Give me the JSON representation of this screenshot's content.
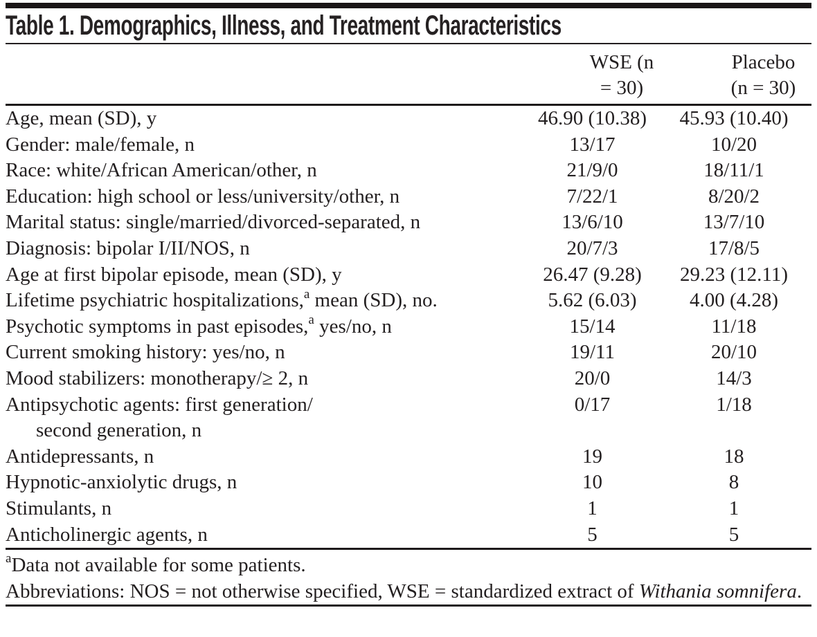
{
  "table": {
    "title": "Table 1. Demographics, Illness, and Treatment Characteristics",
    "columns": {
      "wse": "WSE (n = 30)",
      "placebo_line1": "Placebo",
      "placebo_line2": "(n = 30)"
    },
    "rows": [
      {
        "label": "Age, mean (SD), y",
        "wse": "46.90 (10.38)",
        "placebo": "45.93 (10.40)"
      },
      {
        "label": "Gender: male/female, n",
        "wse": "13/17",
        "placebo": "10/20"
      },
      {
        "label": "Race: white/African American/other, n",
        "wse": "21/9/0",
        "placebo": "18/11/1"
      },
      {
        "label": "Education: high school or less/university/other, n",
        "wse": "7/22/1",
        "placebo": "8/20/2"
      },
      {
        "label": "Marital status: single/married/divorced-separated, n",
        "wse": "13/6/10",
        "placebo": "13/7/10"
      },
      {
        "label": "Diagnosis: bipolar I/II/NOS, n",
        "wse": "20/7/3",
        "placebo": "17/8/5"
      },
      {
        "label": "Age at first bipolar episode, mean (SD), y",
        "wse": "26.47 (9.28)",
        "placebo": "29.23 (12.11)"
      },
      {
        "label": "Lifetime psychiatric hospitalizations,",
        "sup": "a",
        "label_after": " mean (SD), no.",
        "wse": "5.62 (6.03)",
        "placebo": "4.00 (4.28)"
      },
      {
        "label": "Psychotic symptoms in past episodes,",
        "sup": "a",
        "label_after": " yes/no, n",
        "wse": "15/14",
        "placebo": "11/18"
      },
      {
        "label": "Current smoking history: yes/no, n",
        "wse": "19/11",
        "placebo": "20/10"
      },
      {
        "label": "Mood stabilizers: monotherapy/≥ 2, n",
        "wse": "20/0",
        "placebo": "14/3"
      },
      {
        "label": "Antipsychotic agents: first generation/",
        "label_line2": "second generation, n",
        "wse": "0/17",
        "placebo": "1/18"
      },
      {
        "label": "Antidepressants, n",
        "wse": "19",
        "placebo": "18"
      },
      {
        "label": "Hypnotic-anxiolytic drugs, n",
        "wse": "10",
        "placebo": "8"
      },
      {
        "label": "Stimulants, n",
        "wse": "1",
        "placebo": "1"
      },
      {
        "label": "Anticholinergic agents, n",
        "wse": "5",
        "placebo": "5"
      }
    ],
    "footnotes": {
      "fn1_sup": "a",
      "fn1_text": "Data not available for some patients.",
      "abbr_pre": "Abbreviations: NOS = not otherwise specified, WSE = standardized extract of ",
      "abbr_italic": "Withania somnifera",
      "abbr_post": "."
    }
  },
  "colors": {
    "text": "#231f20",
    "rule": "#1d191a",
    "top_bar": "#1a1617",
    "background": "#ffffff"
  }
}
